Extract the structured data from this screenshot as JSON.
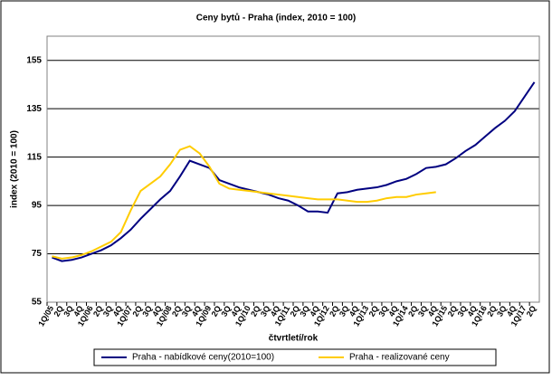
{
  "chart_data": {
    "type": "line",
    "title": "Ceny bytů - Praha (index, 2010 = 100)",
    "ylabel": "index (2010 = 100)",
    "xlabel": "čtvrtletí/rok",
    "categories": [
      "1Q/05",
      "2Q",
      "3Q",
      "4Q",
      "1Q/06",
      "2Q",
      "3Q",
      "4Q",
      "1Q/07",
      "2Q",
      "3Q",
      "4Q",
      "1Q/08",
      "2Q",
      "3Q",
      "4Q",
      "1Q/09",
      "2Q",
      "3Q",
      "4Q",
      "1Q/10",
      "2Q",
      "3Q",
      "4Q",
      "1Q/11",
      "2Q",
      "3Q",
      "4Q",
      "1Q/12",
      "2Q",
      "3Q",
      "4Q",
      "1Q/13",
      "2Q",
      "3Q",
      "4Q",
      "1Q/14",
      "2Q",
      "3Q",
      "4Q",
      "1Q/15",
      "2Q",
      "3Q",
      "4Q",
      "1Q/16",
      "2Q",
      "3Q",
      "4Q",
      "1Q/17",
      "2Q"
    ],
    "series": [
      {
        "name": "Praha - nabídkové ceny(2010=100)",
        "color": "#000080",
        "values": [
          73.5,
          72,
          72.5,
          73.5,
          75,
          76.5,
          78.5,
          81.5,
          85,
          89.5,
          93.5,
          97.5,
          101,
          107,
          113.5,
          112,
          110.5,
          105.5,
          104,
          102.5,
          101.5,
          100.5,
          99.5,
          98,
          97,
          95,
          92.5,
          92.5,
          92,
          100,
          100.5,
          101.5,
          102,
          102.5,
          103.5,
          105,
          106,
          108,
          110.5,
          111,
          112,
          114.5,
          117.5,
          120,
          123.5,
          127,
          130,
          134,
          140,
          146
        ]
      },
      {
        "name": "Praha - realizované ceny",
        "color": "#ffcc00",
        "values": [
          74,
          73,
          73.5,
          74.5,
          76,
          78,
          80,
          84,
          93,
          101,
          104,
          107,
          112,
          118,
          119.5,
          116.5,
          111,
          104,
          102,
          101.5,
          101,
          100.5,
          100,
          99.5,
          99,
          98.5,
          98,
          97.5,
          97.5,
          97.5,
          97,
          96.5,
          96.5,
          97,
          98,
          98.5,
          98.5,
          99.5,
          100,
          100.5,
          null,
          null,
          null,
          null,
          null,
          null,
          null,
          null,
          null,
          null
        ]
      }
    ],
    "ylim": [
      55,
      165
    ],
    "yticks": [
      55,
      75,
      95,
      115,
      135,
      155
    ],
    "grid": true
  }
}
